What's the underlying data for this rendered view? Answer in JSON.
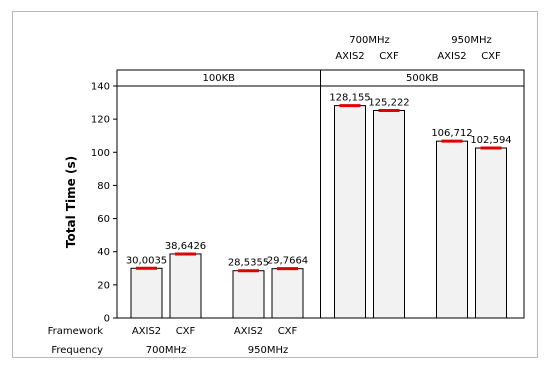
{
  "chart_data": {
    "type": "bar",
    "ylabel": "Total Time (s)",
    "ylim": [
      0,
      140
    ],
    "yticks": [
      0,
      20,
      40,
      60,
      80,
      100,
      120,
      140
    ],
    "row_labels": {
      "framework": "Framework",
      "frequency": "Frequency"
    },
    "panels": [
      {
        "title": "100KB",
        "groups": [
          {
            "frequency": "700MHz",
            "bars": [
              {
                "framework": "AXIS2",
                "value": 30.0035,
                "label": "30,0035"
              },
              {
                "framework": "CXF",
                "value": 38.6426,
                "label": "38,6426"
              }
            ]
          },
          {
            "frequency": "950MHz",
            "bars": [
              {
                "framework": "AXIS2",
                "value": 28.5355,
                "label": "28,5355"
              },
              {
                "framework": "CXF",
                "value": 29.7664,
                "label": "29,7664"
              }
            ]
          }
        ]
      },
      {
        "title": "500KB",
        "groups": [
          {
            "frequency": "700MHz",
            "bars": [
              {
                "framework": "AXIS2",
                "value": 128.155,
                "label": "128,155"
              },
              {
                "framework": "CXF",
                "value": 125.222,
                "label": "125,222"
              }
            ]
          },
          {
            "frequency": "950MHz",
            "bars": [
              {
                "framework": "AXIS2",
                "value": 106.712,
                "label": "106,712"
              },
              {
                "framework": "CXF",
                "value": 102.594,
                "label": "102,594"
              }
            ]
          }
        ]
      }
    ],
    "colors": {
      "bar_fill": "#f2f2f2",
      "bar_stroke": "#000000",
      "mean_marker": "#e00000",
      "frame": "#b8b8b8"
    }
  }
}
